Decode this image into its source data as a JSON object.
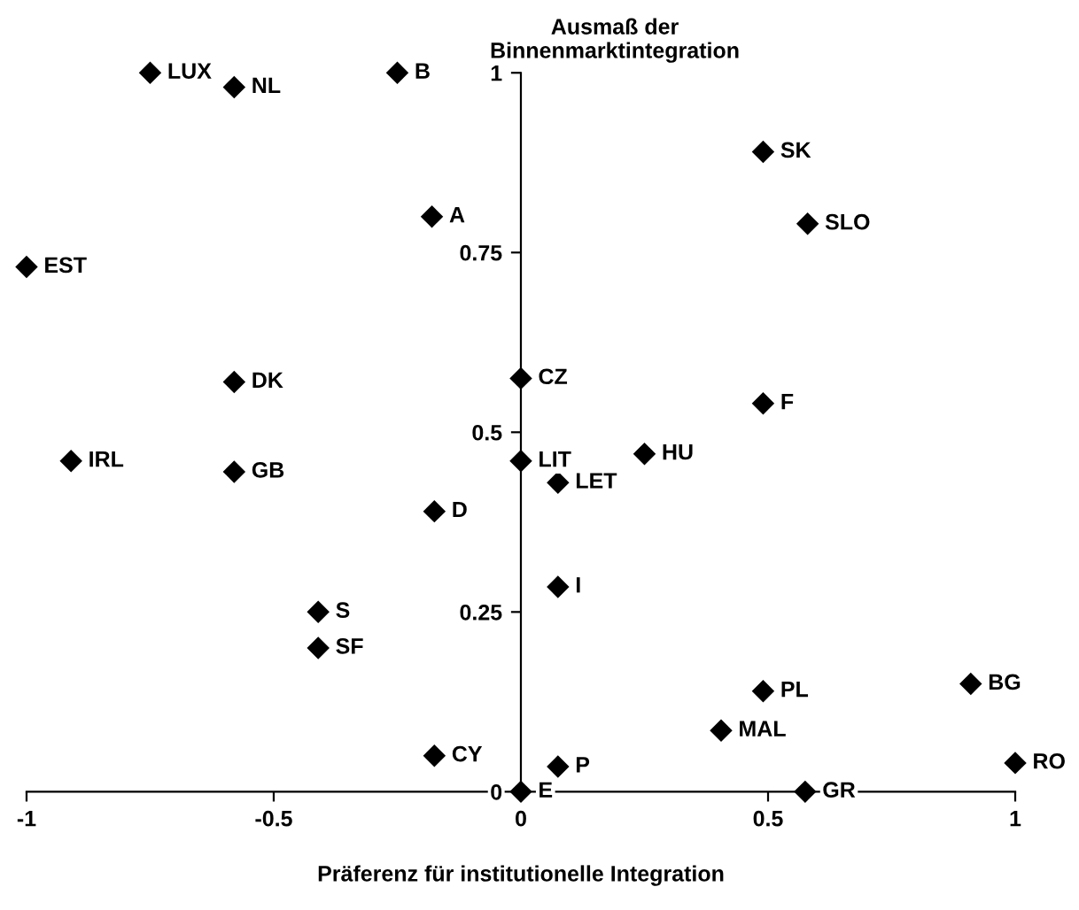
{
  "chart_data": {
    "type": "scatter",
    "xlabel": "Präferenz für institutionelle Integration",
    "ylabel": "Ausmaß der\nBinnenmarktintegration",
    "x": [
      -0.75,
      -0.58,
      -0.25,
      -0.18,
      -1.0,
      -0.58,
      0.0,
      0.49,
      0.58,
      0.49,
      0.25,
      -0.91,
      -0.58,
      -0.175,
      -0.41,
      -0.41,
      -0.175,
      0.0,
      0.0,
      0.075,
      0.075,
      0.49,
      0.91,
      0.405,
      1.0,
      0.075,
      0.575
    ],
    "series": [
      {
        "color": "#000000",
        "values": [
          1.0,
          0.98,
          1.0,
          0.8,
          0.73,
          0.57,
          0.575,
          0.89,
          0.79,
          0.54,
          0.47,
          0.46,
          0.445,
          0.39,
          0.25,
          0.2,
          0.05,
          0.0,
          0.46,
          0.43,
          0.285,
          0.14,
          0.15,
          0.085,
          0.04,
          0.035,
          0.0
        ]
      }
    ],
    "annotations": [
      {
        "text": "LUX",
        "x": -0.75,
        "y": 1.0
      },
      {
        "text": "NL",
        "x": -0.58,
        "y": 0.98
      },
      {
        "text": "B",
        "x": -0.25,
        "y": 1.0
      },
      {
        "text": "A",
        "x": -0.18,
        "y": 0.8
      },
      {
        "text": "EST",
        "x": -1.0,
        "y": 0.73
      },
      {
        "text": "DK",
        "x": -0.58,
        "y": 0.57
      },
      {
        "text": "CZ",
        "x": 0.0,
        "y": 0.575
      },
      {
        "text": "SK",
        "x": 0.49,
        "y": 0.89
      },
      {
        "text": "SLO",
        "x": 0.58,
        "y": 0.79
      },
      {
        "text": "F",
        "x": 0.49,
        "y": 0.54
      },
      {
        "text": "HU",
        "x": 0.25,
        "y": 0.47
      },
      {
        "text": "IRL",
        "x": -0.91,
        "y": 0.46
      },
      {
        "text": "GB",
        "x": -0.58,
        "y": 0.445
      },
      {
        "text": "D",
        "x": -0.175,
        "y": 0.39
      },
      {
        "text": "S",
        "x": -0.41,
        "y": 0.25
      },
      {
        "text": "SF",
        "x": -0.41,
        "y": 0.2
      },
      {
        "text": "CY",
        "x": -0.175,
        "y": 0.05
      },
      {
        "text": "E",
        "x": 0.0,
        "y": 0.0
      },
      {
        "text": "LIT",
        "x": 0.0,
        "y": 0.46
      },
      {
        "text": "LET",
        "x": 0.075,
        "y": 0.43
      },
      {
        "text": "I",
        "x": 0.075,
        "y": 0.285
      },
      {
        "text": "PL",
        "x": 0.49,
        "y": 0.14
      },
      {
        "text": "BG",
        "x": 0.91,
        "y": 0.15
      },
      {
        "text": "MAL",
        "x": 0.405,
        "y": 0.085
      },
      {
        "text": "RO",
        "x": 1.0,
        "y": 0.04
      },
      {
        "text": "P",
        "x": 0.075,
        "y": 0.035
      },
      {
        "text": "GR",
        "x": 0.575,
        "y": 0.0
      }
    ],
    "xlim": [
      -1,
      1
    ],
    "ylim": [
      0,
      1
    ],
    "xticks": [
      -1,
      -0.5,
      0,
      0.5,
      1
    ],
    "yticks": [
      0,
      0.25,
      0.5,
      0.75,
      1
    ],
    "grid": false,
    "marker": "diamond"
  }
}
